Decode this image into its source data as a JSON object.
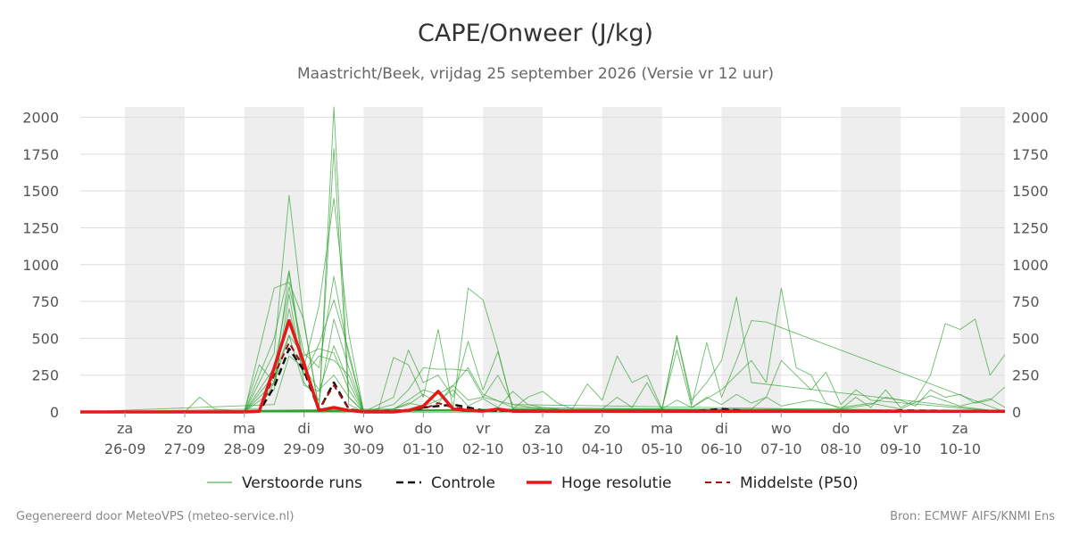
{
  "header": {
    "title": "CAPE/Onweer (J/kg)",
    "subtitle": "Maastricht/Beek, vrijdag 25 september 2026 (Versie vr 12 uur)"
  },
  "footer": {
    "left": "Gegenereerd door MeteoVPS (meteo-service.nl)",
    "right": "Bron: ECMWF AIFS/KNMI Ens"
  },
  "colors": {
    "ensemble": "#2ca02c",
    "control": "#111111",
    "hires": "#e31a1c",
    "median": "#a50f15",
    "shade": "#eeeeee",
    "grid": "#dddddd"
  },
  "chart_data": {
    "type": "line",
    "title": "CAPE/Onweer (J/kg)",
    "subtitle": "Maastricht/Beek, vrijdag 25 september 2026 (Versie vr 12 uur)",
    "x_unit": "days since forecast start (0 = vr 25-09 12 uur)",
    "x_range": [
      -0.25,
      15.25
    ],
    "ylim": [
      0,
      2070
    ],
    "y_ticks": [
      0,
      250,
      500,
      750,
      1000,
      1250,
      1500,
      1750,
      2000
    ],
    "grid": true,
    "legend_position": "bottom",
    "x_ticks": [
      {
        "x": 0.5,
        "day": "za",
        "date": "26-09"
      },
      {
        "x": 1.5,
        "day": "zo",
        "date": "27-09"
      },
      {
        "x": 2.5,
        "day": "ma",
        "date": "28-09"
      },
      {
        "x": 3.5,
        "day": "di",
        "date": "29-09"
      },
      {
        "x": 4.5,
        "day": "wo",
        "date": "30-09"
      },
      {
        "x": 5.5,
        "day": "do",
        "date": "01-10"
      },
      {
        "x": 6.5,
        "day": "vr",
        "date": "02-10"
      },
      {
        "x": 7.5,
        "day": "za",
        "date": "03-10"
      },
      {
        "x": 8.5,
        "day": "zo",
        "date": "04-10"
      },
      {
        "x": 9.5,
        "day": "ma",
        "date": "05-10"
      },
      {
        "x": 10.5,
        "day": "di",
        "date": "06-10"
      },
      {
        "x": 11.5,
        "day": "wo",
        "date": "07-10"
      },
      {
        "x": 12.5,
        "day": "do",
        "date": "08-10"
      },
      {
        "x": 13.5,
        "day": "vr",
        "date": "09-10"
      },
      {
        "x": 14.5,
        "day": "za",
        "date": "10-10"
      }
    ],
    "shaded_days": [
      [
        0.5,
        1.5
      ],
      [
        2.5,
        3.5
      ],
      [
        4.5,
        5.5
      ],
      [
        6.5,
        7.5
      ],
      [
        8.5,
        9.5
      ],
      [
        10.5,
        11.5
      ],
      [
        12.5,
        13.5
      ],
      [
        14.5,
        15.25
      ]
    ],
    "legend": [
      {
        "key": "ensemble",
        "label": "Verstoorde runs",
        "style": "thin"
      },
      {
        "key": "control",
        "label": "Controle",
        "style": "dashed"
      },
      {
        "key": "hires",
        "label": "Hoge resolutie",
        "style": "thick"
      },
      {
        "key": "median",
        "label": "Middelste (P50)",
        "style": "dashed"
      }
    ],
    "series": [
      {
        "name": "Controle",
        "key": "control",
        "x": [
          -0.25,
          2.5,
          2.75,
          3.0,
          3.25,
          3.5,
          3.75,
          4.0,
          4.25,
          4.5,
          5.0,
          5.25,
          5.5,
          5.75,
          6.0,
          6.25,
          6.5,
          8.0,
          10.0,
          10.5,
          11.0,
          13.0,
          13.5,
          15.25
        ],
        "y": [
          0,
          0,
          5,
          170,
          430,
          280,
          10,
          200,
          20,
          0,
          0,
          10,
          30,
          40,
          50,
          30,
          10,
          5,
          5,
          20,
          5,
          5,
          10,
          5
        ]
      },
      {
        "name": "Hoge resolutie",
        "key": "hires",
        "x": [
          -0.25,
          2.5,
          2.75,
          3.0,
          3.25,
          3.5,
          3.75,
          4.0,
          4.25,
          4.5,
          5.0,
          5.25,
          5.5,
          5.75,
          6.0,
          6.25,
          6.5,
          6.75,
          7.0,
          8.0,
          15.25
        ],
        "y": [
          0,
          0,
          5,
          300,
          620,
          330,
          10,
          30,
          10,
          0,
          0,
          10,
          40,
          140,
          20,
          10,
          5,
          20,
          5,
          5,
          5
        ]
      },
      {
        "name": "Middelste (P50)",
        "key": "median",
        "x": [
          -0.25,
          2.5,
          2.75,
          3.0,
          3.25,
          3.5,
          3.75,
          4.0,
          4.25,
          4.5,
          5.5,
          5.75,
          6.0,
          6.5,
          15.25
        ],
        "y": [
          0,
          0,
          5,
          250,
          470,
          300,
          20,
          180,
          20,
          0,
          20,
          60,
          30,
          10,
          5
        ]
      }
    ],
    "ensemble_series": [
      {
        "x": [
          -0.25,
          2.5,
          3.0,
          3.25,
          3.5,
          3.75,
          4.0,
          4.25,
          4.5,
          15.25
        ],
        "y": [
          0,
          0,
          400,
          1470,
          600,
          10,
          2070,
          100,
          0,
          0
        ]
      },
      {
        "x": [
          -0.25,
          2.5,
          3.0,
          3.25,
          3.5,
          3.75,
          4.0,
          4.25,
          4.5,
          15.25
        ],
        "y": [
          0,
          0,
          840,
          880,
          620,
          20,
          1790,
          50,
          0,
          0
        ]
      },
      {
        "x": [
          -0.25,
          2.5,
          3.0,
          3.25,
          3.5,
          3.75,
          4.0,
          4.25,
          4.5,
          15.25
        ],
        "y": [
          0,
          0,
          500,
          960,
          300,
          720,
          1450,
          530,
          0,
          0
        ]
      },
      {
        "x": [
          -0.25,
          2.5,
          3.0,
          3.25,
          3.5,
          3.75,
          4.0,
          4.25,
          4.5,
          15.25
        ],
        "y": [
          0,
          0,
          300,
          850,
          400,
          300,
          920,
          380,
          0,
          0
        ]
      },
      {
        "x": [
          -0.25,
          2.25,
          2.5,
          2.75,
          3.0,
          3.25,
          3.5,
          3.75,
          4.0,
          4.25,
          4.5,
          15.25
        ],
        "y": [
          0,
          0,
          10,
          320,
          200,
          700,
          250,
          460,
          760,
          410,
          0,
          0
        ]
      },
      {
        "x": [
          -0.25,
          1.5,
          1.75,
          2.0,
          2.5,
          3.0,
          3.25,
          3.5,
          3.75,
          4.0,
          4.25,
          4.5,
          15.25
        ],
        "y": [
          0,
          0,
          100,
          20,
          0,
          250,
          520,
          180,
          140,
          450,
          200,
          0,
          0
        ]
      },
      {
        "x": [
          -0.25,
          2.5,
          3.0,
          3.25,
          3.5,
          3.75,
          4.0,
          4.25,
          4.5,
          15.25
        ],
        "y": [
          0,
          0,
          150,
          800,
          200,
          80,
          630,
          300,
          0,
          0
        ]
      },
      {
        "x": [
          -0.25,
          2.5,
          3.0,
          3.25,
          3.5,
          3.75,
          4.0,
          4.25,
          4.5,
          15.25
        ],
        "y": [
          0,
          0,
          200,
          950,
          250,
          380,
          350,
          250,
          0,
          0
        ]
      },
      {
        "x": [
          -0.25,
          4.5,
          4.75,
          5.0,
          5.25,
          5.5,
          5.75,
          6.0,
          6.25,
          6.5,
          6.75,
          7.0,
          15.25
        ],
        "y": [
          0,
          0,
          20,
          370,
          320,
          100,
          560,
          20,
          840,
          760,
          420,
          20,
          0
        ]
      },
      {
        "x": [
          -0.25,
          4.5,
          5.0,
          5.25,
          5.5,
          5.75,
          6.0,
          6.25,
          6.5,
          6.75,
          7.0,
          15.25
        ],
        "y": [
          0,
          0,
          100,
          420,
          200,
          250,
          100,
          480,
          150,
          410,
          20,
          0
        ]
      },
      {
        "x": [
          -0.25,
          4.5,
          5.0,
          5.25,
          5.5,
          5.75,
          6.0,
          6.25,
          6.5,
          6.75,
          7.0,
          15.25
        ],
        "y": [
          0,
          0,
          50,
          150,
          300,
          290,
          290,
          280,
          100,
          250,
          50,
          0
        ]
      },
      {
        "x": [
          -0.25,
          4.5,
          5.0,
          5.25,
          5.5,
          5.75,
          6.0,
          6.25,
          6.5,
          7.0,
          15.25
        ],
        "y": [
          0,
          0,
          20,
          80,
          150,
          120,
          180,
          300,
          120,
          30,
          0
        ]
      },
      {
        "x": [
          -0.25,
          7.0,
          7.25,
          7.5,
          7.75,
          8.0,
          8.25,
          8.5,
          8.75,
          9.0,
          9.25,
          9.5,
          9.75,
          10.0,
          10.25,
          10.5,
          10.75,
          11.0,
          15.25
        ],
        "y": [
          0,
          20,
          100,
          140,
          60,
          20,
          190,
          80,
          380,
          200,
          250,
          20,
          520,
          80,
          200,
          350,
          780,
          200,
          0
        ]
      },
      {
        "x": [
          -0.25,
          8.5,
          8.75,
          9.0,
          9.25,
          9.5,
          9.75,
          10.0,
          10.25,
          10.5,
          10.75,
          11.0,
          11.25,
          15.25
        ],
        "y": [
          0,
          20,
          100,
          30,
          200,
          10,
          510,
          50,
          470,
          100,
          350,
          620,
          610,
          0
        ]
      },
      {
        "x": [
          -0.25,
          9.5,
          9.75,
          10.0,
          10.5,
          10.75,
          11.0,
          11.25,
          11.5,
          11.75,
          12.0,
          12.25,
          12.5,
          15.25
        ],
        "y": [
          0,
          20,
          420,
          30,
          150,
          250,
          350,
          200,
          840,
          300,
          250,
          60,
          20,
          0
        ]
      },
      {
        "x": [
          -0.25,
          11.0,
          11.25,
          11.5,
          11.75,
          12.0,
          12.25,
          12.5,
          12.75,
          13.0,
          15.25
        ],
        "y": [
          0,
          20,
          100,
          350,
          250,
          150,
          270,
          50,
          150,
          80,
          0
        ]
      },
      {
        "x": [
          -0.25,
          12.5,
          12.75,
          13.0,
          13.25,
          13.5,
          13.75,
          14.0,
          14.25,
          14.5,
          14.75,
          15.0,
          15.25
        ],
        "y": [
          0,
          20,
          100,
          30,
          150,
          30,
          80,
          250,
          600,
          560,
          630,
          250,
          390
        ]
      },
      {
        "x": [
          -0.25,
          12.5,
          13.0,
          13.25,
          13.5,
          13.75,
          14.0,
          14.25,
          14.5,
          14.75,
          15.0,
          15.25
        ],
        "y": [
          0,
          20,
          50,
          100,
          80,
          40,
          150,
          100,
          120,
          60,
          80,
          170
        ]
      },
      {
        "x": [
          -0.25,
          3.0,
          3.25,
          3.5,
          3.75,
          4.0,
          4.25,
          4.5,
          15.25
        ],
        "y": [
          0,
          50,
          380,
          300,
          150,
          250,
          100,
          0,
          0
        ]
      },
      {
        "x": [
          -0.25,
          2.75,
          3.0,
          3.25,
          3.5,
          3.75,
          4.0,
          4.25,
          4.5,
          15.25
        ],
        "y": [
          0,
          20,
          200,
          520,
          380,
          430,
          400,
          150,
          0,
          0
        ]
      },
      {
        "x": [
          -0.25,
          4.75,
          5.0,
          5.25,
          5.5,
          5.75,
          6.0,
          6.25,
          6.5,
          7.0,
          7.5,
          8.0,
          15.25
        ],
        "y": [
          0,
          0,
          20,
          50,
          120,
          60,
          180,
          80,
          100,
          50,
          20,
          10,
          0
        ]
      },
      {
        "x": [
          -0.25,
          5.0,
          5.25,
          5.5,
          5.75,
          6.0,
          6.25,
          6.5,
          6.75,
          7.0,
          7.25,
          7.5,
          8.0,
          15.25
        ],
        "y": [
          0,
          20,
          60,
          40,
          80,
          150,
          40,
          90,
          30,
          140,
          50,
          30,
          10,
          0
        ]
      },
      {
        "x": [
          -0.25,
          9.5,
          9.75,
          10.0,
          10.25,
          10.5,
          10.75,
          11.0,
          11.25,
          11.5,
          12.0,
          12.5,
          13.0,
          13.5,
          14.0,
          14.5,
          15.0,
          15.25
        ],
        "y": [
          0,
          20,
          80,
          30,
          100,
          50,
          120,
          60,
          100,
          40,
          80,
          30,
          60,
          20,
          110,
          40,
          90,
          30
        ]
      }
    ]
  }
}
